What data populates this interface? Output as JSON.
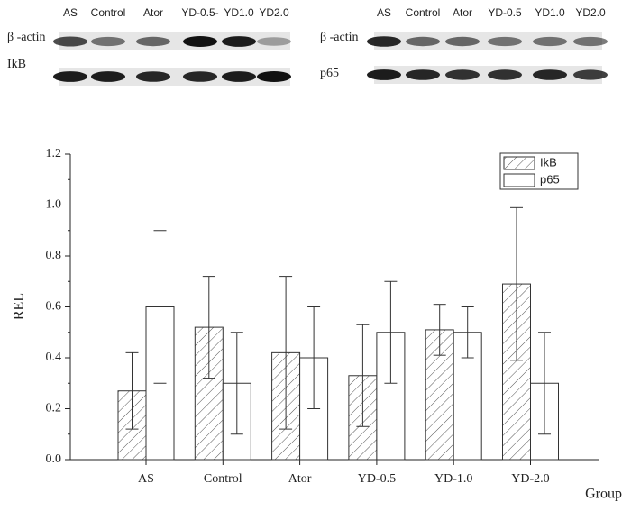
{
  "blots": [
    {
      "lanes": [
        "AS",
        "Control",
        "Ator",
        "YD-0.5-",
        "YD1.0",
        "YD2.0"
      ],
      "rows": [
        "β -actin",
        "IkB"
      ]
    },
    {
      "lanes": [
        "AS",
        "Control",
        "Ator",
        "YD-0.5",
        "YD1.0",
        "YD2.0"
      ],
      "rows": [
        "β -actin",
        "p65"
      ]
    }
  ],
  "chart_data": {
    "type": "bar",
    "categories": [
      "AS",
      "Control",
      "Ator",
      "YD-0.5",
      "YD-1.0",
      "YD-2.0"
    ],
    "series": [
      {
        "name": "IkB",
        "color": "#ffffff",
        "hatch": true,
        "values": [
          0.27,
          0.52,
          0.42,
          0.33,
          0.51,
          0.69
        ],
        "errors": [
          0.15,
          0.2,
          0.3,
          0.2,
          0.1,
          0.3
        ]
      },
      {
        "name": "p65",
        "color": "#ffffff",
        "hatch": false,
        "values": [
          0.6,
          0.3,
          0.4,
          0.5,
          0.5,
          0.3
        ],
        "errors": [
          0.3,
          0.2,
          0.2,
          0.2,
          0.1,
          0.2
        ]
      }
    ],
    "x_label": "Group",
    "y_label": "REL",
    "ylim": [
      0,
      1.2
    ],
    "yticks": [
      {
        "value": 0,
        "label": "0.0"
      },
      {
        "value": 0.2,
        "label": "0.2"
      },
      {
        "value": 0.4,
        "label": "0.4"
      },
      {
        "value": 0.6,
        "label": "0.6"
      },
      {
        "value": 0.8,
        "label": "0.8"
      },
      {
        "value": 1,
        "label": "1.0"
      },
      {
        "value": 1.2,
        "label": "1.2"
      }
    ],
    "legend": "top-right"
  }
}
